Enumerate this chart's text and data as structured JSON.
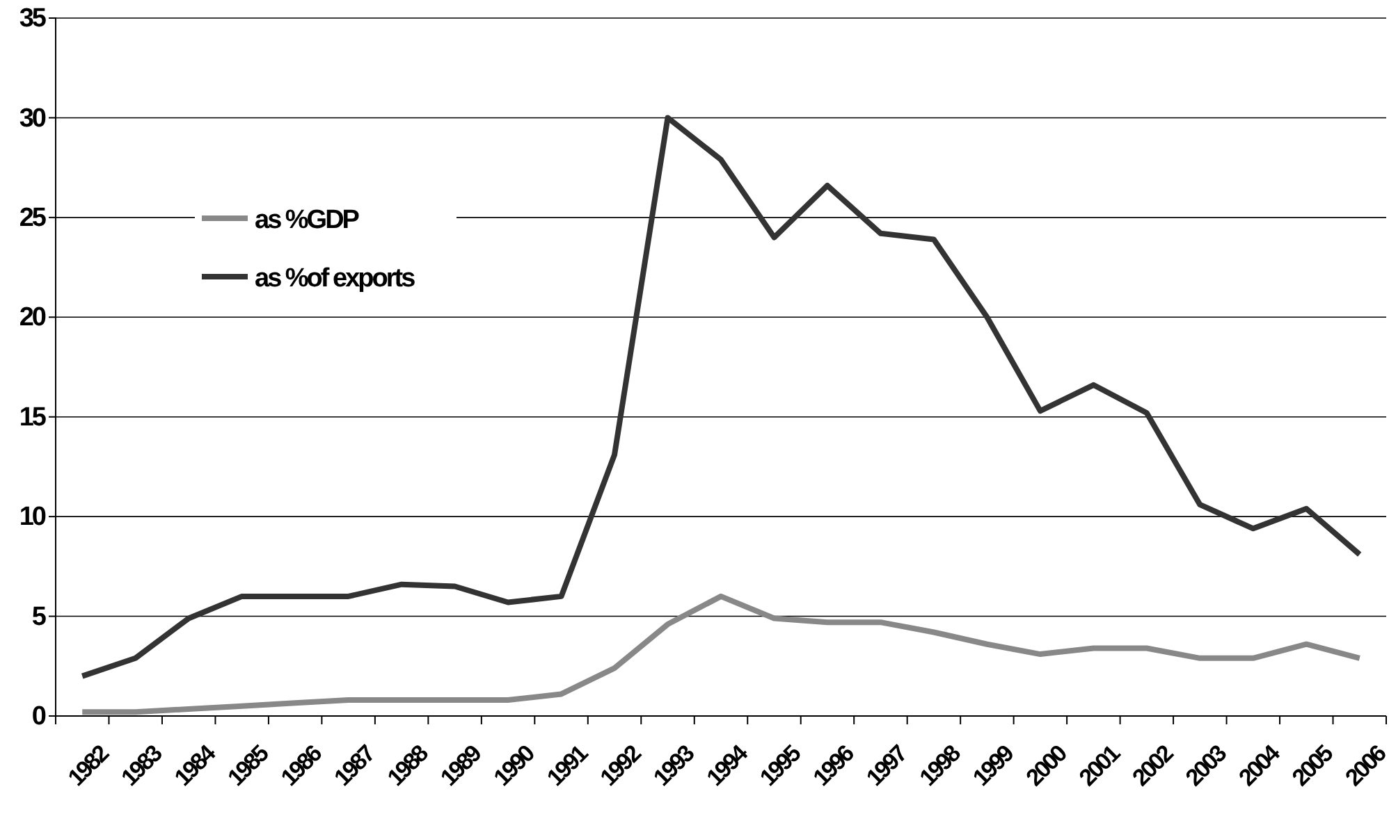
{
  "chart_data": {
    "type": "line",
    "categories": [
      "1982",
      "1983",
      "1984",
      "1985",
      "1986",
      "1987",
      "1988",
      "1989",
      "1990",
      "1991",
      "1992",
      "1993",
      "1994",
      "1995",
      "1996",
      "1997",
      "1998",
      "1999",
      "2000",
      "2001",
      "2002",
      "2003",
      "2004",
      "2005",
      "2006"
    ],
    "series": [
      {
        "name": "as %GDP",
        "color": "#888888",
        "values": [
          0.2,
          0.2,
          0.35,
          0.5,
          0.65,
          0.8,
          0.8,
          0.8,
          0.8,
          1.1,
          2.4,
          4.6,
          6.0,
          4.9,
          4.7,
          4.7,
          4.2,
          3.6,
          3.1,
          3.4,
          3.4,
          2.9,
          2.9,
          3.6,
          2.9
        ]
      },
      {
        "name": "as %of exports",
        "color": "#333333",
        "values": [
          2.0,
          2.9,
          4.9,
          6.0,
          6.0,
          6.0,
          6.6,
          6.5,
          5.7,
          6.0,
          13.1,
          30.0,
          27.9,
          24.0,
          26.6,
          24.2,
          23.9,
          20.0,
          15.3,
          16.6,
          15.2,
          10.6,
          9.4,
          10.4,
          8.1
        ]
      }
    ],
    "ylim": [
      0,
      35
    ],
    "yticks": [
      0,
      5,
      10,
      15,
      20,
      25,
      30,
      35
    ],
    "grid": "y",
    "legend": "top left",
    "marker": "none",
    "line_style": "solid"
  }
}
